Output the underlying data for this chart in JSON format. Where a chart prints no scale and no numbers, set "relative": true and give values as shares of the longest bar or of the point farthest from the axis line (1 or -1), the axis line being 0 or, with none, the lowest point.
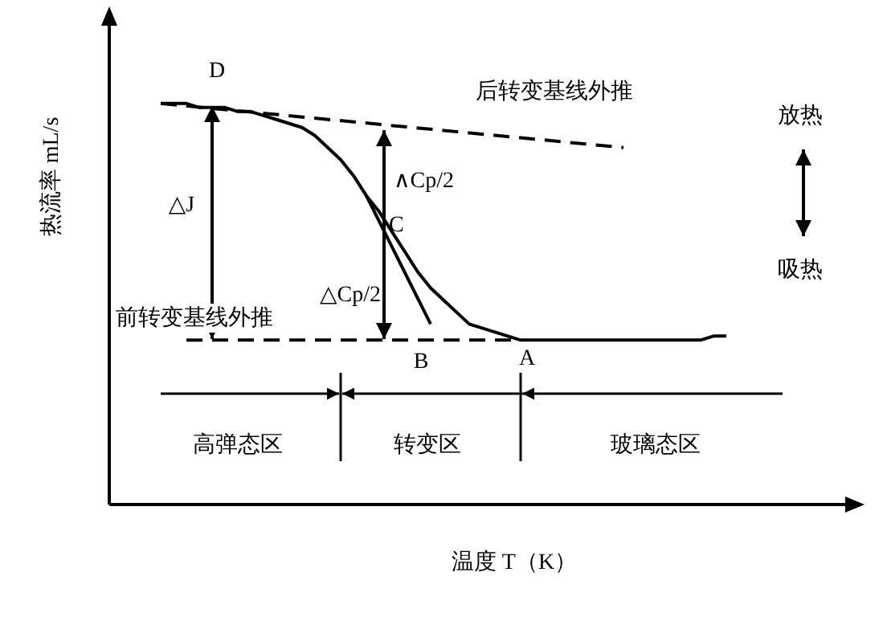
{
  "chart_data": {
    "type": "line",
    "relative": true,
    "xlabel": "温度 T（K）",
    "ylabel": "热流率 mL/s",
    "categories": [
      null,
      null,
      null,
      null,
      null,
      null,
      null,
      null,
      null,
      null,
      null,
      null,
      null,
      null,
      null,
      null,
      null,
      null,
      null,
      null,
      null,
      null,
      null,
      null,
      null,
      null,
      null,
      null,
      null,
      null,
      null,
      null,
      null,
      null,
      null,
      null,
      null,
      null,
      null,
      null,
      null,
      null,
      null,
      null,
      null,
      null,
      null,
      null,
      null,
      null,
      null,
      null,
      null,
      null,
      null
    ],
    "series": [
      {
        "color": "#000000",
        "line_style": "solid",
        "values": [
          null,
          null,
          null,
          null,
          1.0,
          1.0,
          1.0,
          0.99,
          0.99,
          0.99,
          0.98,
          0.98,
          0.97,
          0.96,
          0.95,
          0.94,
          0.92,
          0.89,
          0.86,
          0.82,
          0.77,
          0.73,
          0.68,
          0.63,
          0.58,
          0.54,
          0.51,
          0.48,
          0.45,
          0.44,
          0.43,
          0.42,
          0.41,
          0.41,
          0.41,
          0.41,
          0.41,
          0.41,
          0.41,
          0.41,
          0.41,
          0.41,
          0.41,
          0.41,
          0.41,
          0.41,
          0.41,
          0.42,
          0.42,
          null,
          null,
          null,
          null,
          null,
          null
        ]
      },
      {
        "color": "#000000",
        "line_style": "dashed",
        "values": [
          null,
          null,
          null,
          null,
          1.0,
          null,
          null,
          null,
          null,
          null,
          null,
          null,
          null,
          null,
          null,
          null,
          null,
          null,
          null,
          null,
          null,
          null,
          null,
          null,
          null,
          null,
          null,
          null,
          null,
          null,
          null,
          null,
          null,
          null,
          null,
          null,
          null,
          null,
          null,
          null,
          0.89,
          null,
          null,
          null,
          null,
          null,
          null,
          null,
          null,
          null,
          null,
          null,
          null,
          null,
          null
        ]
      },
      {
        "color": "#000000",
        "line_style": "dashed",
        "values": [
          null,
          null,
          null,
          null,
          null,
          null,
          0.41,
          null,
          null,
          null,
          null,
          null,
          null,
          null,
          null,
          null,
          null,
          null,
          null,
          null,
          null,
          null,
          null,
          null,
          null,
          null,
          null,
          null,
          null,
          null,
          null,
          null,
          0.41,
          null,
          null,
          null,
          null,
          null,
          null,
          null,
          null,
          null,
          null,
          null,
          null,
          null,
          null,
          null,
          null,
          null,
          null,
          null,
          null,
          null,
          null
        ]
      },
      {
        "color": "#000000",
        "line_style": "solid",
        "values": [
          null,
          null,
          null,
          null,
          null,
          null,
          null,
          null,
          null,
          null,
          null,
          null,
          null,
          null,
          null,
          null,
          null,
          null,
          null,
          null,
          0.77,
          null,
          null,
          null,
          null,
          0.45,
          null,
          null,
          null,
          null,
          null,
          null,
          null,
          null,
          null,
          null,
          null,
          null,
          null,
          null,
          null,
          null,
          null,
          null,
          null,
          null,
          null,
          null,
          null,
          null,
          null,
          null,
          null,
          null,
          null
        ]
      }
    ],
    "marker": "none",
    "legend": false,
    "annotations": [
      "D",
      "后转变基线外推",
      "放热",
      "吸热",
      "△J",
      "∧Cp/2",
      "C",
      "△Cp/2",
      "前转变基线外推",
      "B",
      "A",
      "高弹态区",
      "转变区",
      "玻璃态区"
    ]
  }
}
